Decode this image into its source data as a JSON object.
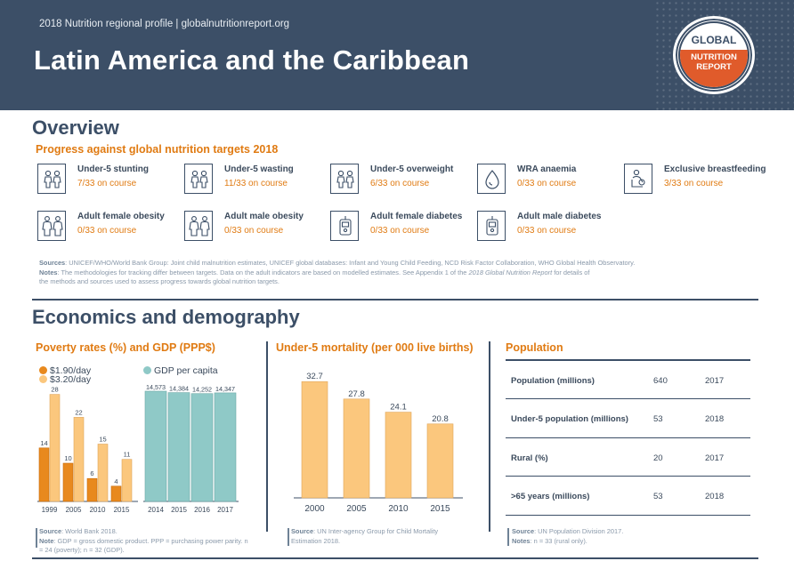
{
  "header": {
    "subtitle": "2018 Nutrition regional profile | globalnutritionreport.org",
    "title": "Latin America and the Caribbean",
    "logo_line1": "GLOBAL",
    "logo_line2": "NUTRITION",
    "logo_line3": "REPORT"
  },
  "overview": {
    "heading": "Overview",
    "subheading": "Progress against global nutrition targets 2018",
    "targets": [
      {
        "label": "Under-5 stunting",
        "value": "7/33 on course",
        "icon": "child-pair-icon"
      },
      {
        "label": "Under-5 wasting",
        "value": "11/33 on course",
        "icon": "child-pair-icon"
      },
      {
        "label": "Under-5 overweight",
        "value": "6/33 on course",
        "icon": "child-pair-icon"
      },
      {
        "label": "WRA anaemia",
        "value": "0/33 on course",
        "icon": "blood-drop-icon"
      },
      {
        "label": "Exclusive breastfeeding",
        "value": "3/33 on course",
        "icon": "breastfeeding-icon"
      },
      {
        "label": "Adult female obesity",
        "value": "0/33 on course",
        "icon": "adult-pair-icon"
      },
      {
        "label": "Adult male obesity",
        "value": "0/33 on course",
        "icon": "adult-pair-icon"
      },
      {
        "label": "Adult female diabetes",
        "value": "0/33 on course",
        "icon": "glucose-meter-icon"
      },
      {
        "label": "Adult male diabetes",
        "value": "0/33 on course",
        "icon": "glucose-meter-icon"
      }
    ],
    "sources_label": "Sources",
    "sources_text": ": UNICEF/WHO/World Bank Group: Joint child malnutrition estimates, UNICEF global databases: Infant and Young Child Feeding, NCD Risk Factor Collaboration, WHO Global Health Observatory.",
    "notes_label": "Notes",
    "notes_text_1": ": The methodologies for tracking differ between targets. Data on the adult indicators are based on modelled estimates. See Appendix 1 of the ",
    "notes_italic": "2018 Global Nutrition Report",
    "notes_text_2": " for details of",
    "notes_line2": "the methods and sources used to assess progress towards global nutrition targets."
  },
  "economics": {
    "heading": "Economics and demography",
    "poverty_title": "Poverty rates (%) and GDP (PPP$)",
    "mortality_title": "Under-5 mortality (per 000 live births)",
    "population_title": "Population",
    "poverty_source_label": "Source",
    "poverty_source": ": World Bank 2018.",
    "poverty_note_label": "Note",
    "poverty_note": ": GDP = gross domestic product. PPP = purchasing power parity. n = 24 (poverty); n = 32 (GDP).",
    "mortality_source_label": "Source",
    "mortality_source": ": UN Inter-agency Group for Child Mortality Estimation 2018.",
    "population_source_label": "Source",
    "population_source": ": UN Population Division 2017.",
    "population_note_label": "Notes",
    "population_note": ": n = 33 (rural only).",
    "population_rows": [
      {
        "label": "Population (millions)",
        "value": "640",
        "year": "2017"
      },
      {
        "label": "Under-5 population (millions)",
        "value": "53",
        "year": "2018"
      },
      {
        "label": "Rural (%)",
        "value": "20",
        "year": "2017"
      },
      {
        "label": ">65 years (millions)",
        "value": "53",
        "year": "2018"
      }
    ]
  },
  "colors": {
    "header_bg": "#3c4f67",
    "accent_orange": "#e07b13",
    "poverty_190": "#e8891e",
    "poverty_320": "#fbc77d",
    "gdp": "#8fc9c7",
    "mortality": "#fbc77d"
  },
  "chart_data": [
    {
      "type": "bar",
      "title": "Poverty rates (%)",
      "categories": [
        "1999",
        "2005",
        "2010",
        "2015"
      ],
      "series": [
        {
          "name": "$1.90/day",
          "values": [
            14,
            10,
            6,
            4
          ]
        },
        {
          "name": "$3.20/day",
          "values": [
            28,
            22,
            15,
            11
          ]
        }
      ]
    },
    {
      "type": "bar",
      "title": "GDP (PPP$)",
      "categories": [
        "2014",
        "2015",
        "2016",
        "2017"
      ],
      "series": [
        {
          "name": "GDP per capita",
          "values": [
            14573,
            14384,
            14252,
            14347
          ]
        }
      ],
      "labels": [
        "14,573",
        "14,384",
        "14,252",
        "14,347"
      ],
      "tick_labels": [
        "2014",
        "2015",
        "2016",
        "2017"
      ]
    },
    {
      "type": "bar",
      "title": "Under-5 mortality (per 000 live births)",
      "categories": [
        "2000",
        "2005",
        "2010",
        "2015"
      ],
      "series": [
        {
          "values": [
            32.7,
            27.8,
            24.1,
            20.8
          ]
        }
      ]
    }
  ]
}
